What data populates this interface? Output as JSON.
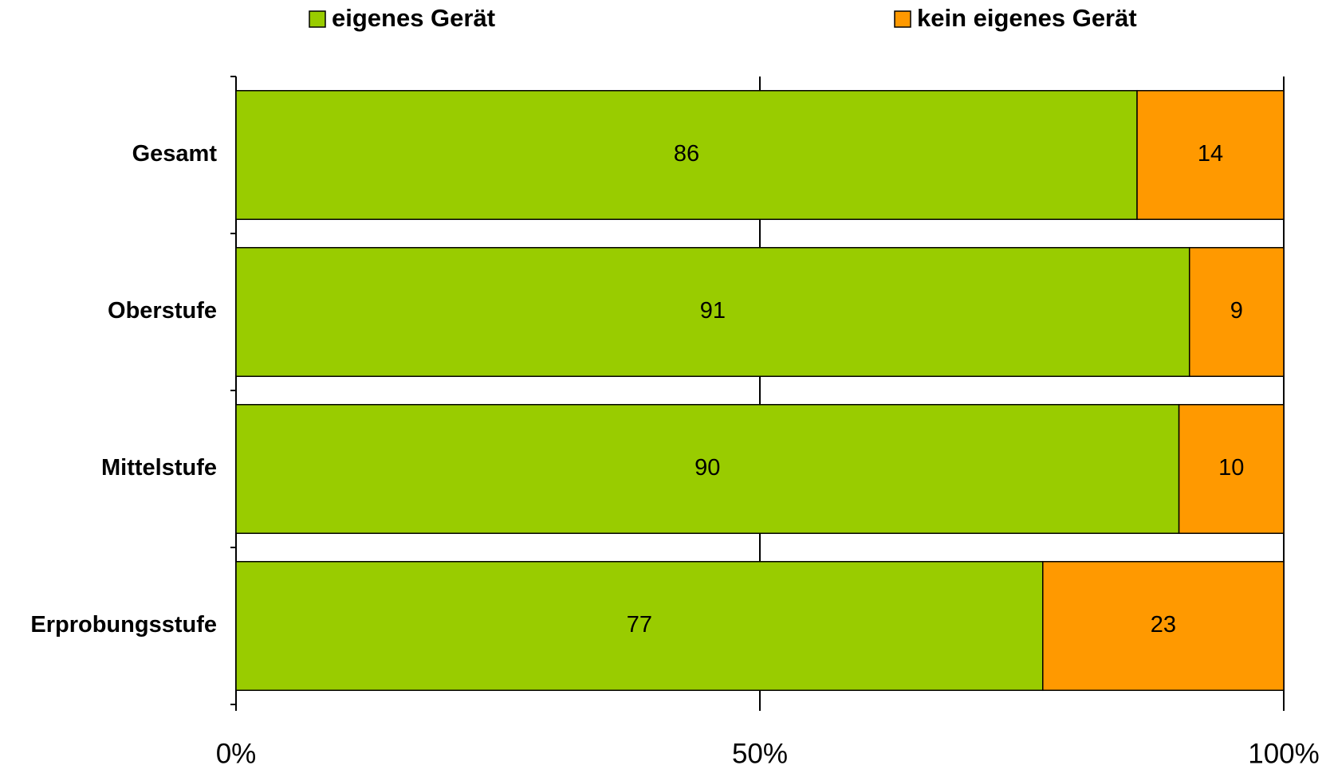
{
  "chart_data": {
    "type": "stacked-bar-horizontal",
    "categories": [
      "Gesamt",
      "Oberstufe",
      "Mittelstufe",
      "Erprobungsstufe"
    ],
    "series": [
      {
        "name": "eigenes Gerät",
        "color": "#99cc00",
        "values": [
          86,
          91,
          90,
          77
        ]
      },
      {
        "name": "kein eigenes Gerät",
        "color": "#ff9900",
        "values": [
          14,
          9,
          10,
          23
        ]
      }
    ],
    "xlim": [
      0,
      100
    ],
    "xticks": [
      {
        "value": 0,
        "label": "0%"
      },
      {
        "value": 50,
        "label": "50%"
      },
      {
        "value": 100,
        "label": "100%"
      }
    ],
    "grid": true,
    "legend": "top"
  }
}
